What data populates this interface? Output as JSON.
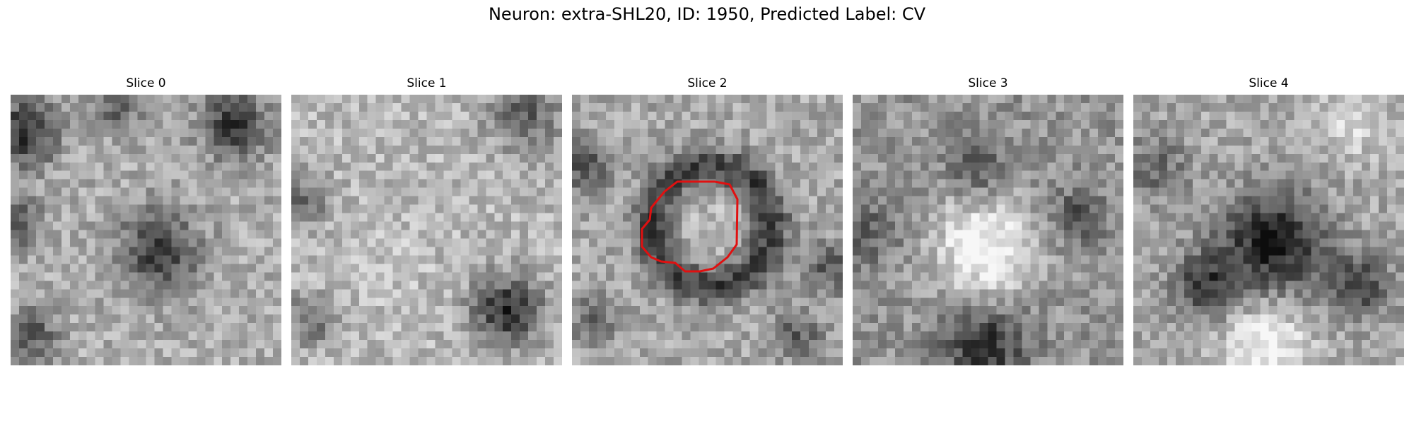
{
  "figure": {
    "title": "Neuron: extra-SHL20, ID: 1950, Predicted Label: CV"
  },
  "colors": {
    "contour": "#e01010",
    "background": "#ffffff"
  },
  "panels": [
    {
      "title": "Slice 0",
      "has_contour": false
    },
    {
      "title": "Slice 1",
      "has_contour": false
    },
    {
      "title": "Slice 2",
      "has_contour": true
    },
    {
      "title": "Slice 3",
      "has_contour": false
    },
    {
      "title": "Slice 4",
      "has_contour": false
    }
  ]
}
